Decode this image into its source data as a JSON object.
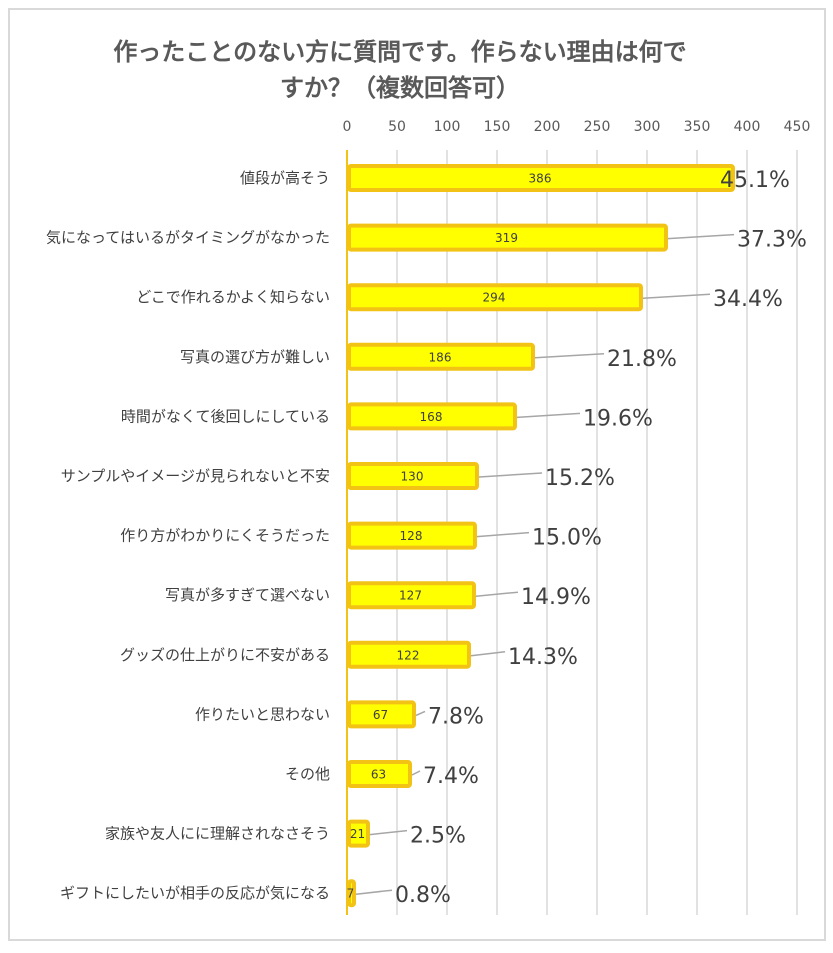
{
  "chart_data": {
    "type": "bar",
    "orientation": "horizontal",
    "title": "作ったことのない方に質問です。作らない理由は何ですか？（複数回答可）",
    "title_lines": [
      "作ったことのない方に質問です。作らない理由は何で",
      "すか？（複数回答可）"
    ],
    "categories": [
      "値段が高そう",
      "気になってはいるがタイミングがなかった",
      "どこで作れるかよく知らない",
      "写真の選び方が難しい",
      "時間がなくて後回しにしている",
      "サンプルやイメージが見られないと不安",
      "作り方がわかりにくそうだった",
      "写真が多すぎて選べない",
      "グッズの仕上がりに不安がある",
      "作りたいと思わない",
      "その他",
      "家族や友人にに理解されなさそう",
      "ギフトにしたいが相手の反応が気になる"
    ],
    "values": [
      386,
      319,
      294,
      186,
      168,
      130,
      128,
      127,
      122,
      67,
      63,
      21,
      7
    ],
    "percent_labels": [
      "45.1%",
      "37.3%",
      "34.4%",
      "21.8%",
      "19.6%",
      "15.2%",
      "15.0%",
      "14.9%",
      "14.3%",
      "7.8%",
      "7.4%",
      "2.5%",
      "0.8%"
    ],
    "xlim": [
      0,
      450
    ],
    "xticks": [
      "0",
      "50",
      "100",
      "150",
      "200",
      "250",
      "300",
      "350",
      "400",
      "450"
    ],
    "axis_position": "top",
    "grid": true,
    "colors": {
      "bar_fill": "#FFFF00",
      "bar_border": "#F2C314",
      "grid": "#D9D9D9",
      "leader": "#A6A6A6"
    }
  }
}
